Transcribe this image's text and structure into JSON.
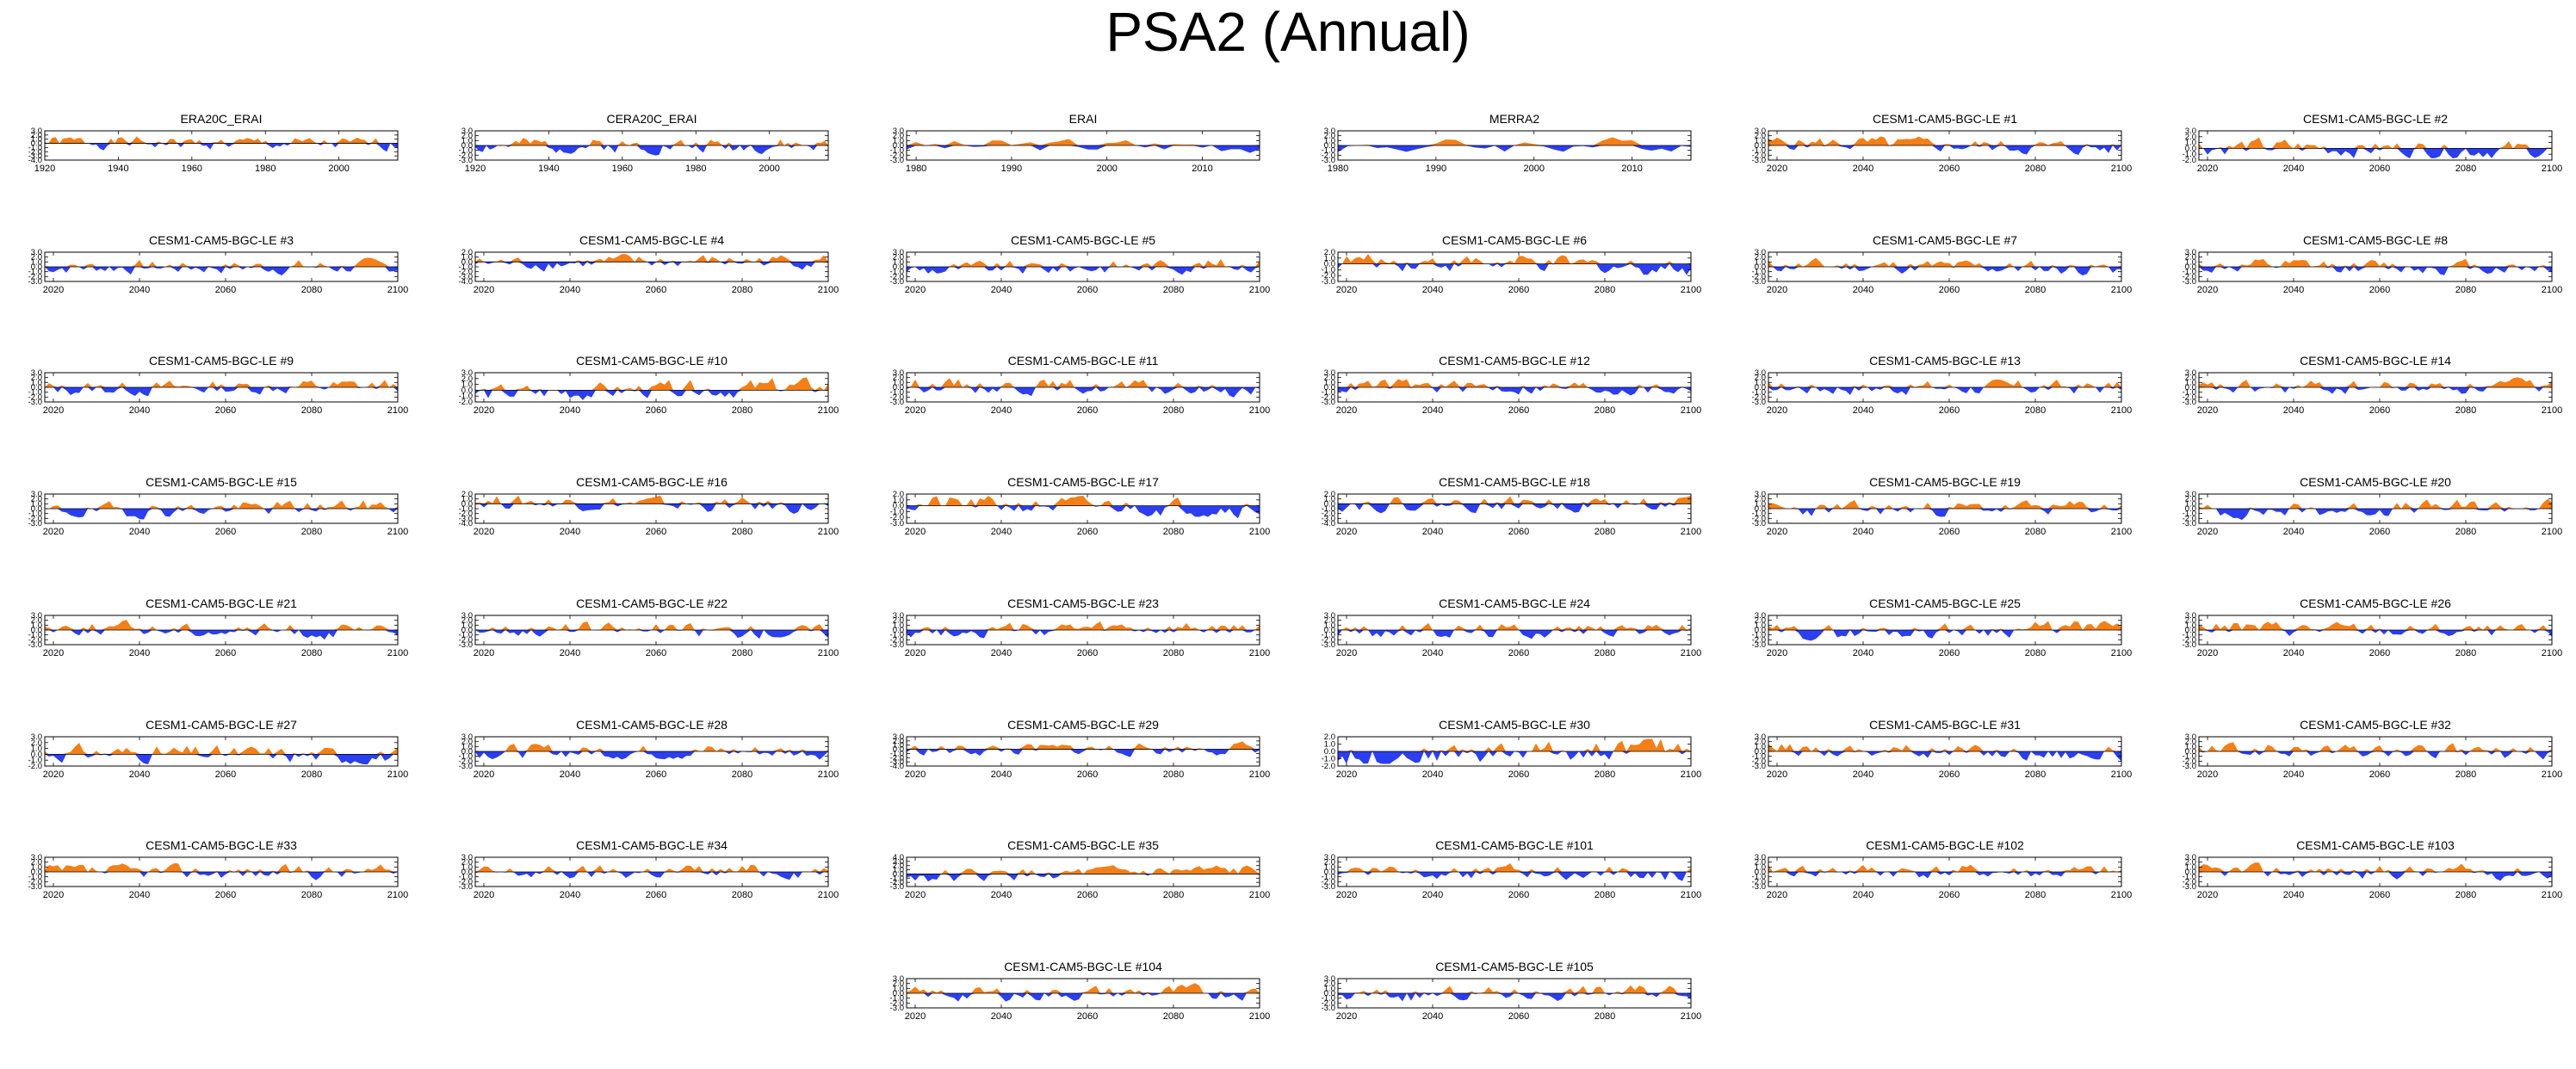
{
  "title": "PSA2 (Annual)",
  "colors": {
    "positive": "#f57f17",
    "negative": "#2b3ef0",
    "axis": "#000000"
  },
  "chart_data": [
    {
      "type": "area",
      "title": "ERA20C_ERAI",
      "xlim": [
        1920,
        2016
      ],
      "xticks": [
        1920,
        1940,
        1960,
        1980,
        2000
      ],
      "ylim": [
        -4.0,
        3.0
      ],
      "yticks": [
        "3.0",
        "2.0",
        "1.0",
        "0.0",
        "-1.0",
        "-2.0",
        "-3.0",
        "-4.0"
      ],
      "seed": 1
    },
    {
      "type": "area",
      "title": "CERA20C_ERAI",
      "xlim": [
        1920,
        2016
      ],
      "xticks": [
        1920,
        1940,
        1960,
        1980,
        2000
      ],
      "ylim": [
        -3.0,
        3.0
      ],
      "yticks": [
        "3.0",
        "2.0",
        "1.0",
        "0.0",
        "-1.0",
        "-2.0",
        "-3.0"
      ],
      "seed": 2
    },
    {
      "type": "area",
      "title": "ERAI",
      "xlim": [
        1979,
        2016
      ],
      "xticks": [
        1980,
        1990,
        2000,
        2010
      ],
      "ylim": [
        -3.0,
        3.0
      ],
      "yticks": [
        "3.0",
        "2.0",
        "1.0",
        "0.0",
        "-1.0",
        "-2.0",
        "-3.0"
      ],
      "seed": 3
    },
    {
      "type": "area",
      "title": "MERRA2",
      "xlim": [
        1980,
        2016
      ],
      "xticks": [
        1980,
        1990,
        2000,
        2010
      ],
      "ylim": [
        -3.0,
        3.0
      ],
      "yticks": [
        "3.0",
        "2.0",
        "1.0",
        "0.0",
        "-1.0",
        "-2.0",
        "-3.0"
      ],
      "seed": 4
    },
    {
      "type": "area",
      "title": "CESM1-CAM5-BGC-LE #1",
      "xlim": [
        2018,
        2100
      ],
      "xticks": [
        2020,
        2040,
        2060,
        2080,
        2100
      ],
      "ylim": [
        -3.0,
        3.0
      ],
      "yticks": [
        "3.0",
        "2.0",
        "1.0",
        "0.0",
        "-1.0",
        "-2.0",
        "-3.0"
      ],
      "seed": 5
    },
    {
      "type": "area",
      "title": "CESM1-CAM5-BGC-LE #2",
      "xlim": [
        2018,
        2100
      ],
      "xticks": [
        2020,
        2040,
        2060,
        2080,
        2100
      ],
      "ylim": [
        -2.0,
        3.0
      ],
      "yticks": [
        "3.0",
        "2.0",
        "1.0",
        "0.0",
        "-1.0",
        "-2.0"
      ],
      "seed": 6
    },
    {
      "type": "area",
      "title": "CESM1-CAM5-BGC-LE #3",
      "xlim": [
        2018,
        2100
      ],
      "xticks": [
        2020,
        2040,
        2060,
        2080,
        2100
      ],
      "ylim": [
        -3.0,
        3.0
      ],
      "yticks": [
        "3.0",
        "2.0",
        "1.0",
        "0.0",
        "-1.0",
        "-2.0",
        "-3.0"
      ],
      "seed": 7
    },
    {
      "type": "area",
      "title": "CESM1-CAM5-BGC-LE #4",
      "xlim": [
        2018,
        2100
      ],
      "xticks": [
        2020,
        2040,
        2060,
        2080,
        2100
      ],
      "ylim": [
        -4.0,
        2.0
      ],
      "yticks": [
        "2.0",
        "1.0",
        "0.0",
        "-1.0",
        "-2.0",
        "-3.0",
        "-4.0"
      ],
      "seed": 8
    },
    {
      "type": "area",
      "title": "CESM1-CAM5-BGC-LE #5",
      "xlim": [
        2018,
        2100
      ],
      "xticks": [
        2020,
        2040,
        2060,
        2080,
        2100
      ],
      "ylim": [
        -3.0,
        3.0
      ],
      "yticks": [
        "3.0",
        "2.0",
        "1.0",
        "0.0",
        "-1.0",
        "-2.0",
        "-3.0"
      ],
      "seed": 9
    },
    {
      "type": "area",
      "title": "CESM1-CAM5-BGC-LE #6",
      "xlim": [
        2018,
        2100
      ],
      "xticks": [
        2020,
        2040,
        2060,
        2080,
        2100
      ],
      "ylim": [
        -3.0,
        2.0
      ],
      "yticks": [
        "2.0",
        "1.0",
        "0.0",
        "-1.0",
        "-2.0",
        "-3.0"
      ],
      "seed": 10
    },
    {
      "type": "area",
      "title": "CESM1-CAM5-BGC-LE #7",
      "xlim": [
        2018,
        2100
      ],
      "xticks": [
        2020,
        2040,
        2060,
        2080,
        2100
      ],
      "ylim": [
        -3.0,
        3.0
      ],
      "yticks": [
        "3.0",
        "2.0",
        "1.0",
        "0.0",
        "-1.0",
        "-2.0",
        "-3.0"
      ],
      "seed": 11
    },
    {
      "type": "area",
      "title": "CESM1-CAM5-BGC-LE #8",
      "xlim": [
        2018,
        2100
      ],
      "xticks": [
        2020,
        2040,
        2060,
        2080,
        2100
      ],
      "ylim": [
        -3.0,
        3.0
      ],
      "yticks": [
        "3.0",
        "2.0",
        "1.0",
        "0.0",
        "-1.0",
        "-2.0",
        "-3.0"
      ],
      "seed": 12
    },
    {
      "type": "area",
      "title": "CESM1-CAM5-BGC-LE #9",
      "xlim": [
        2018,
        2100
      ],
      "xticks": [
        2020,
        2040,
        2060,
        2080,
        2100
      ],
      "ylim": [
        -3.0,
        3.0
      ],
      "yticks": [
        "3.0",
        "2.0",
        "1.0",
        "0.0",
        "-1.0",
        "-2.0",
        "-3.0"
      ],
      "seed": 13
    },
    {
      "type": "area",
      "title": "CESM1-CAM5-BGC-LE #10",
      "xlim": [
        2018,
        2100
      ],
      "xticks": [
        2020,
        2040,
        2060,
        2080,
        2100
      ],
      "ylim": [
        -2.0,
        3.0
      ],
      "yticks": [
        "3.0",
        "2.0",
        "1.0",
        "0.0",
        "-1.0",
        "-2.0"
      ],
      "seed": 14
    },
    {
      "type": "area",
      "title": "CESM1-CAM5-BGC-LE #11",
      "xlim": [
        2018,
        2100
      ],
      "xticks": [
        2020,
        2040,
        2060,
        2080,
        2100
      ],
      "ylim": [
        -3.0,
        3.0
      ],
      "yticks": [
        "3.0",
        "2.0",
        "1.0",
        "0.0",
        "-1.0",
        "-2.0",
        "-3.0"
      ],
      "seed": 15
    },
    {
      "type": "area",
      "title": "CESM1-CAM5-BGC-LE #12",
      "xlim": [
        2018,
        2100
      ],
      "xticks": [
        2020,
        2040,
        2060,
        2080,
        2100
      ],
      "ylim": [
        -3.0,
        3.0
      ],
      "yticks": [
        "3.0",
        "2.0",
        "1.0",
        "0.0",
        "-1.0",
        "-2.0",
        "-3.0"
      ],
      "seed": 16
    },
    {
      "type": "area",
      "title": "CESM1-CAM5-BGC-LE #13",
      "xlim": [
        2018,
        2100
      ],
      "xticks": [
        2020,
        2040,
        2060,
        2080,
        2100
      ],
      "ylim": [
        -3.0,
        3.0
      ],
      "yticks": [
        "3.0",
        "2.0",
        "1.0",
        "0.0",
        "-1.0",
        "-2.0",
        "-3.0"
      ],
      "seed": 17
    },
    {
      "type": "area",
      "title": "CESM1-CAM5-BGC-LE #14",
      "xlim": [
        2018,
        2100
      ],
      "xticks": [
        2020,
        2040,
        2060,
        2080,
        2100
      ],
      "ylim": [
        -3.0,
        3.0
      ],
      "yticks": [
        "3.0",
        "2.0",
        "1.0",
        "0.0",
        "-1.0",
        "-2.0",
        "-3.0"
      ],
      "seed": 18
    },
    {
      "type": "area",
      "title": "CESM1-CAM5-BGC-LE #15",
      "xlim": [
        2018,
        2100
      ],
      "xticks": [
        2020,
        2040,
        2060,
        2080,
        2100
      ],
      "ylim": [
        -3.0,
        3.0
      ],
      "yticks": [
        "3.0",
        "2.0",
        "1.0",
        "0.0",
        "-1.0",
        "-2.0",
        "-3.0"
      ],
      "seed": 19
    },
    {
      "type": "area",
      "title": "CESM1-CAM5-BGC-LE #16",
      "xlim": [
        2018,
        2100
      ],
      "xticks": [
        2020,
        2040,
        2060,
        2080,
        2100
      ],
      "ylim": [
        -4.0,
        2.0
      ],
      "yticks": [
        "2.0",
        "1.0",
        "0.0",
        "-1.0",
        "-2.0",
        "-3.0",
        "-4.0"
      ],
      "seed": 20
    },
    {
      "type": "area",
      "title": "CESM1-CAM5-BGC-LE #17",
      "xlim": [
        2018,
        2100
      ],
      "xticks": [
        2020,
        2040,
        2060,
        2080,
        2100
      ],
      "ylim": [
        -3.0,
        2.0
      ],
      "yticks": [
        "2.0",
        "1.0",
        "0.0",
        "-1.0",
        "-2.0",
        "-3.0"
      ],
      "seed": 21
    },
    {
      "type": "area",
      "title": "CESM1-CAM5-BGC-LE #18",
      "xlim": [
        2018,
        2100
      ],
      "xticks": [
        2020,
        2040,
        2060,
        2080,
        2100
      ],
      "ylim": [
        -4.0,
        2.0
      ],
      "yticks": [
        "2.0",
        "1.0",
        "0.0",
        "-1.0",
        "-2.0",
        "-3.0",
        "-4.0"
      ],
      "seed": 22
    },
    {
      "type": "area",
      "title": "CESM1-CAM5-BGC-LE #19",
      "xlim": [
        2018,
        2100
      ],
      "xticks": [
        2020,
        2040,
        2060,
        2080,
        2100
      ],
      "ylim": [
        -3.0,
        3.0
      ],
      "yticks": [
        "3.0",
        "2.0",
        "1.0",
        "0.0",
        "-1.0",
        "-2.0",
        "-3.0"
      ],
      "seed": 23
    },
    {
      "type": "area",
      "title": "CESM1-CAM5-BGC-LE #20",
      "xlim": [
        2018,
        2100
      ],
      "xticks": [
        2020,
        2040,
        2060,
        2080,
        2100
      ],
      "ylim": [
        -3.0,
        3.0
      ],
      "yticks": [
        "3.0",
        "2.0",
        "1.0",
        "0.0",
        "-1.0",
        "-2.0",
        "-3.0"
      ],
      "seed": 24
    },
    {
      "type": "area",
      "title": "CESM1-CAM5-BGC-LE #21",
      "xlim": [
        2018,
        2100
      ],
      "xticks": [
        2020,
        2040,
        2060,
        2080,
        2100
      ],
      "ylim": [
        -3.0,
        3.0
      ],
      "yticks": [
        "3.0",
        "2.0",
        "1.0",
        "0.0",
        "-1.0",
        "-2.0",
        "-3.0"
      ],
      "seed": 25
    },
    {
      "type": "area",
      "title": "CESM1-CAM5-BGC-LE #22",
      "xlim": [
        2018,
        2100
      ],
      "xticks": [
        2020,
        2040,
        2060,
        2080,
        2100
      ],
      "ylim": [
        -3.0,
        3.0
      ],
      "yticks": [
        "3.0",
        "2.0",
        "1.0",
        "0.0",
        "-1.0",
        "-2.0",
        "-3.0"
      ],
      "seed": 26
    },
    {
      "type": "area",
      "title": "CESM1-CAM5-BGC-LE #23",
      "xlim": [
        2018,
        2100
      ],
      "xticks": [
        2020,
        2040,
        2060,
        2080,
        2100
      ],
      "ylim": [
        -3.0,
        3.0
      ],
      "yticks": [
        "3.0",
        "2.0",
        "1.0",
        "0.0",
        "-1.0",
        "-2.0",
        "-3.0"
      ],
      "seed": 27
    },
    {
      "type": "area",
      "title": "CESM1-CAM5-BGC-LE #24",
      "xlim": [
        2018,
        2100
      ],
      "xticks": [
        2020,
        2040,
        2060,
        2080,
        2100
      ],
      "ylim": [
        -3.0,
        3.0
      ],
      "yticks": [
        "3.0",
        "2.0",
        "1.0",
        "0.0",
        "-1.0",
        "-2.0",
        "-3.0"
      ],
      "seed": 28
    },
    {
      "type": "area",
      "title": "CESM1-CAM5-BGC-LE #25",
      "xlim": [
        2018,
        2100
      ],
      "xticks": [
        2020,
        2040,
        2060,
        2080,
        2100
      ],
      "ylim": [
        -3.0,
        3.0
      ],
      "yticks": [
        "3.0",
        "2.0",
        "1.0",
        "0.0",
        "-1.0",
        "-2.0",
        "-3.0"
      ],
      "seed": 29
    },
    {
      "type": "area",
      "title": "CESM1-CAM5-BGC-LE #26",
      "xlim": [
        2018,
        2100
      ],
      "xticks": [
        2020,
        2040,
        2060,
        2080,
        2100
      ],
      "ylim": [
        -3.0,
        3.0
      ],
      "yticks": [
        "3.0",
        "2.0",
        "1.0",
        "0.0",
        "-1.0",
        "-2.0",
        "-3.0"
      ],
      "seed": 30
    },
    {
      "type": "area",
      "title": "CESM1-CAM5-BGC-LE #27",
      "xlim": [
        2018,
        2100
      ],
      "xticks": [
        2020,
        2040,
        2060,
        2080,
        2100
      ],
      "ylim": [
        -2.0,
        3.0
      ],
      "yticks": [
        "3.0",
        "2.0",
        "1.0",
        "0.0",
        "-1.0",
        "-2.0"
      ],
      "seed": 31
    },
    {
      "type": "area",
      "title": "CESM1-CAM5-BGC-LE #28",
      "xlim": [
        2018,
        2100
      ],
      "xticks": [
        2020,
        2040,
        2060,
        2080,
        2100
      ],
      "ylim": [
        -3.0,
        3.0
      ],
      "yticks": [
        "3.0",
        "2.0",
        "1.0",
        "0.0",
        "-1.0",
        "-2.0",
        "-3.0"
      ],
      "seed": 32
    },
    {
      "type": "area",
      "title": "CESM1-CAM5-BGC-LE #29",
      "xlim": [
        2018,
        2100
      ],
      "xticks": [
        2020,
        2040,
        2060,
        2080,
        2100
      ],
      "ylim": [
        -4.0,
        3.0
      ],
      "yticks": [
        "3.0",
        "2.0",
        "1.0",
        "0.0",
        "-1.0",
        "-2.0",
        "-3.0",
        "-4.0"
      ],
      "seed": 33
    },
    {
      "type": "area",
      "title": "CESM1-CAM5-BGC-LE #30",
      "xlim": [
        2018,
        2100
      ],
      "xticks": [
        2020,
        2040,
        2060,
        2080,
        2100
      ],
      "ylim": [
        -2.0,
        2.0
      ],
      "yticks": [
        "2.0",
        "1.0",
        "0.0",
        "-1.0",
        "-2.0"
      ],
      "seed": 34
    },
    {
      "type": "area",
      "title": "CESM1-CAM5-BGC-LE #31",
      "xlim": [
        2018,
        2100
      ],
      "xticks": [
        2020,
        2040,
        2060,
        2080,
        2100
      ],
      "ylim": [
        -3.0,
        3.0
      ],
      "yticks": [
        "3.0",
        "2.0",
        "1.0",
        "0.0",
        "-1.0",
        "-2.0",
        "-3.0"
      ],
      "seed": 35
    },
    {
      "type": "area",
      "title": "CESM1-CAM5-BGC-LE #32",
      "xlim": [
        2018,
        2100
      ],
      "xticks": [
        2020,
        2040,
        2060,
        2080,
        2100
      ],
      "ylim": [
        -3.0,
        3.0
      ],
      "yticks": [
        "3.0",
        "2.0",
        "1.0",
        "0.0",
        "-1.0",
        "-2.0",
        "-3.0"
      ],
      "seed": 36
    },
    {
      "type": "area",
      "title": "CESM1-CAM5-BGC-LE #33",
      "xlim": [
        2018,
        2100
      ],
      "xticks": [
        2020,
        2040,
        2060,
        2080,
        2100
      ],
      "ylim": [
        -3.0,
        3.0
      ],
      "yticks": [
        "3.0",
        "2.0",
        "1.0",
        "0.0",
        "-1.0",
        "-2.0",
        "-3.0"
      ],
      "seed": 37
    },
    {
      "type": "area",
      "title": "CESM1-CAM5-BGC-LE #34",
      "xlim": [
        2018,
        2100
      ],
      "xticks": [
        2020,
        2040,
        2060,
        2080,
        2100
      ],
      "ylim": [
        -3.0,
        3.0
      ],
      "yticks": [
        "3.0",
        "2.0",
        "1.0",
        "0.0",
        "-1.0",
        "-2.0",
        "-3.0"
      ],
      "seed": 38
    },
    {
      "type": "area",
      "title": "CESM1-CAM5-BGC-LE #35",
      "xlim": [
        2018,
        2100
      ],
      "xticks": [
        2020,
        2040,
        2060,
        2080,
        2100
      ],
      "ylim": [
        -3.0,
        4.0
      ],
      "yticks": [
        "4.0",
        "3.0",
        "2.0",
        "1.0",
        "0.0",
        "-1.0",
        "-2.0",
        "-3.0"
      ],
      "seed": 39
    },
    {
      "type": "area",
      "title": "CESM1-CAM5-BGC-LE #101",
      "xlim": [
        2018,
        2100
      ],
      "xticks": [
        2020,
        2040,
        2060,
        2080,
        2100
      ],
      "ylim": [
        -3.0,
        3.0
      ],
      "yticks": [
        "3.0",
        "2.0",
        "1.0",
        "0.0",
        "-1.0",
        "-2.0",
        "-3.0"
      ],
      "seed": 40
    },
    {
      "type": "area",
      "title": "CESM1-CAM5-BGC-LE #102",
      "xlim": [
        2018,
        2100
      ],
      "xticks": [
        2020,
        2040,
        2060,
        2080,
        2100
      ],
      "ylim": [
        -3.0,
        3.0
      ],
      "yticks": [
        "3.0",
        "2.0",
        "1.0",
        "0.0",
        "-1.0",
        "-2.0",
        "-3.0"
      ],
      "seed": 41
    },
    {
      "type": "area",
      "title": "CESM1-CAM5-BGC-LE #103",
      "xlim": [
        2018,
        2100
      ],
      "xticks": [
        2020,
        2040,
        2060,
        2080,
        2100
      ],
      "ylim": [
        -3.0,
        3.0
      ],
      "yticks": [
        "3.0",
        "2.0",
        "1.0",
        "0.0",
        "-1.0",
        "-2.0",
        "-3.0"
      ],
      "seed": 42
    },
    {
      "type": "area",
      "title": "CESM1-CAM5-BGC-LE #104",
      "xlim": [
        2018,
        2100
      ],
      "xticks": [
        2020,
        2040,
        2060,
        2080,
        2100
      ],
      "ylim": [
        -3.0,
        3.0
      ],
      "yticks": [
        "3.0",
        "2.0",
        "1.0",
        "0.0",
        "-1.0",
        "-2.0",
        "-3.0"
      ],
      "seed": 43
    },
    {
      "type": "area",
      "title": "CESM1-CAM5-BGC-LE #105",
      "xlim": [
        2018,
        2100
      ],
      "xticks": [
        2020,
        2040,
        2060,
        2080,
        2100
      ],
      "ylim": [
        -3.0,
        3.0
      ],
      "yticks": [
        "3.0",
        "2.0",
        "1.0",
        "0.0",
        "-1.0",
        "-2.0",
        "-3.0"
      ],
      "seed": 44
    }
  ]
}
